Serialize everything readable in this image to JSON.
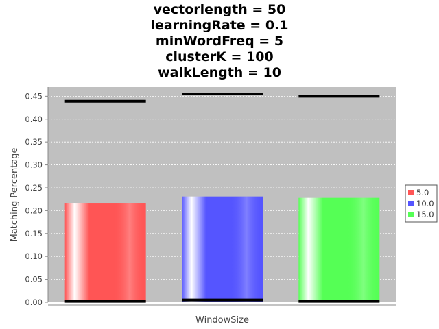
{
  "chart_data": {
    "type": "bar",
    "title_lines": [
      "vectorlength = 50",
      "learningRate = 0.1",
      "minWordFreq = 5",
      "clusterK = 100",
      "walkLength = 10"
    ],
    "xlabel": "WindowSize",
    "ylabel": "Matching Percentage",
    "ylim": [
      0,
      0.47
    ],
    "yticks": [
      "0.00",
      "0.05",
      "0.10",
      "0.15",
      "0.20",
      "0.25",
      "0.30",
      "0.35",
      "0.40",
      "0.45"
    ],
    "grid": true,
    "legend_position": "right",
    "series": [
      {
        "name": "5.0",
        "value": 0.217,
        "low": 0.002,
        "high": 0.439,
        "color": "#ff5555"
      },
      {
        "name": "10.0",
        "value": 0.231,
        "low": 0.005,
        "high": 0.455,
        "color": "#5555ff"
      },
      {
        "name": "15.0",
        "value": 0.228,
        "low": 0.002,
        "high": 0.45,
        "color": "#55ff55"
      }
    ],
    "plot_background": "#c0c0c0"
  }
}
